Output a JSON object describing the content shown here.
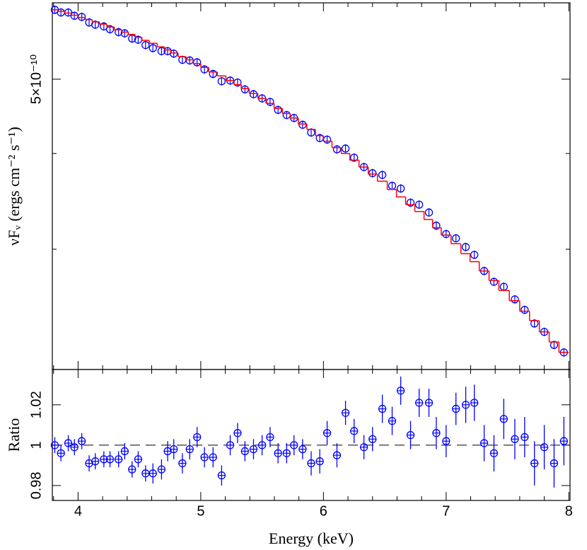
{
  "chart_data": {
    "type": "scatter",
    "xlabel": "Energy (keV)",
    "xlim": [
      3.79,
      8.01
    ],
    "xticks": [
      4,
      5,
      6,
      7,
      8
    ],
    "xminorticks": [
      3.8,
      4.2,
      4.4,
      4.6,
      4.8,
      5.2,
      5.4,
      5.6,
      5.8,
      6.2,
      6.4,
      6.6,
      6.8,
      7.2,
      7.4,
      7.6,
      7.8
    ],
    "x": [
      3.81,
      3.86,
      3.92,
      3.97,
      4.03,
      4.09,
      4.14,
      4.21,
      4.26,
      4.33,
      4.38,
      4.44,
      4.49,
      4.55,
      4.61,
      4.68,
      4.73,
      4.78,
      4.85,
      4.91,
      4.97,
      5.03,
      5.1,
      5.17,
      5.24,
      5.3,
      5.36,
      5.43,
      5.5,
      5.565,
      5.63,
      5.7,
      5.76,
      5.83,
      5.9,
      5.97,
      6.03,
      6.11,
      6.18,
      6.25,
      6.33,
      6.4,
      6.48,
      6.56,
      6.63,
      6.71,
      6.78,
      6.86,
      6.92,
      7.0,
      7.08,
      7.16,
      7.23,
      7.31,
      7.39,
      7.47,
      7.56,
      7.64,
      7.72,
      7.8,
      7.88,
      7.96
    ],
    "panels": [
      {
        "ylabel": "νFᵥ  (ergs cm⁻² s⁻¹)",
        "log_scale": true,
        "ylim": [
          2.09e-10,
          6.29e-10
        ],
        "yticks": [
          {
            "value": 5e-10,
            "label": "5×10⁻¹⁰"
          }
        ],
        "yminorticks": [
          4e-10,
          3e-10
        ],
        "series": [
          {
            "color": "#0000ff",
            "marker": "circle",
            "values": [
              6.16e-10,
              6.11e-10,
              6.11e-10,
              6.05e-10,
              6.03e-10,
              5.93e-10,
              5.89e-10,
              5.86e-10,
              5.81e-10,
              5.76e-10,
              5.74e-10,
              5.65e-10,
              5.63e-10,
              5.54e-10,
              5.49e-10,
              5.44e-10,
              5.44e-10,
              5.4e-10,
              5.3e-10,
              5.29e-10,
              5.26e-10,
              5.15e-10,
              5.08e-10,
              4.97e-10,
              4.98e-10,
              4.95e-10,
              4.85e-10,
              4.78e-10,
              4.72e-10,
              4.67e-10,
              4.56e-10,
              4.49e-10,
              4.45e-10,
              4.36e-10,
              4.26e-10,
              4.19e-10,
              4.17e-10,
              4.05e-10,
              4.06e-10,
              3.95e-10,
              3.84e-10,
              3.77e-10,
              3.75e-10,
              3.63e-10,
              3.6e-10,
              3.45e-10,
              3.43e-10,
              3.35e-10,
              3.22e-10,
              3.14e-10,
              3.1e-10,
              3.02e-10,
              2.95e-10,
              2.81e-10,
              2.72e-10,
              2.68e-10,
              2.58e-10,
              2.5e-10,
              2.4e-10,
              2.34e-10,
              2.25e-10,
              2.2e-10
            ]
          },
          {
            "color": "#ff0000",
            "style": "step",
            "values": [
              6.16e-10,
              6.13e-10,
              6.1e-10,
              6.06e-10,
              6.02e-10,
              5.98e-10,
              5.94e-10,
              5.9e-10,
              5.85e-10,
              5.8e-10,
              5.76e-10,
              5.72e-10,
              5.67e-10,
              5.62e-10,
              5.57e-10,
              5.51e-10,
              5.46e-10,
              5.41e-10,
              5.35e-10,
              5.3e-10,
              5.24e-10,
              5.18e-10,
              5.11e-10,
              5.05e-10,
              4.98e-10,
              4.92e-10,
              4.86e-10,
              4.79e-10,
              4.72e-10,
              4.65e-10,
              4.58e-10,
              4.51e-10,
              4.45e-10,
              4.37e-10,
              4.3e-10,
              4.22e-10,
              4.15e-10,
              4.07e-10,
              4e-10,
              3.92e-10,
              3.84e-10,
              3.76e-10,
              3.68e-10,
              3.59e-10,
              3.51e-10,
              3.43e-10,
              3.36e-10,
              3.28e-10,
              3.2e-10,
              3.13e-10,
              3.05e-10,
              2.96e-10,
              2.89e-10,
              2.81e-10,
              2.73e-10,
              2.65e-10,
              2.57e-10,
              2.49e-10,
              2.42e-10,
              2.34e-10,
              2.27e-10,
              2.2e-10
            ]
          }
        ]
      },
      {
        "ylabel": "Ratio",
        "log_scale": false,
        "ylim": [
          0.9726,
          1.0375
        ],
        "yticks": [
          0.98,
          1,
          1.02
        ],
        "reference_line": 1,
        "series": [
          {
            "color": "#0000ff",
            "marker": "circle",
            "values": [
              1.0,
              0.996,
              1.001,
              0.999,
              1.002,
              0.991,
              0.992,
              0.993,
              0.993,
              0.993,
              0.997,
              0.988,
              0.993,
              0.986,
              0.986,
              0.988,
              0.997,
              0.998,
              0.991,
              0.998,
              1.004,
              0.994,
              0.994,
              0.985,
              1.0,
              1.006,
              0.997,
              0.998,
              1.0,
              1.004,
              0.996,
              0.996,
              1.0,
              0.998,
              0.991,
              0.992,
              1.006,
              0.995,
              1.016,
              1.007,
              0.999,
              1.003,
              1.018,
              1.012,
              1.027,
              1.005,
              1.021,
              1.021,
              1.006,
              1.002,
              1.018,
              1.02,
              1.021,
              1.001,
              0.996,
              1.013,
              1.003,
              1.004,
              0.991,
              0.999,
              0.991,
              1.002
            ],
            "errors": [
              0.004,
              0.004,
              0.004,
              0.004,
              0.004,
              0.004,
              0.004,
              0.004,
              0.004,
              0.004,
              0.004,
              0.004,
              0.004,
              0.004,
              0.005,
              0.005,
              0.005,
              0.005,
              0.005,
              0.005,
              0.005,
              0.005,
              0.005,
              0.005,
              0.005,
              0.005,
              0.005,
              0.005,
              0.005,
              0.005,
              0.005,
              0.005,
              0.005,
              0.005,
              0.006,
              0.006,
              0.006,
              0.006,
              0.006,
              0.006,
              0.006,
              0.006,
              0.007,
              0.007,
              0.007,
              0.007,
              0.007,
              0.007,
              0.008,
              0.008,
              0.008,
              0.009,
              0.009,
              0.009,
              0.009,
              0.01,
              0.01,
              0.01,
              0.011,
              0.011,
              0.012,
              0.012
            ]
          }
        ]
      }
    ]
  }
}
